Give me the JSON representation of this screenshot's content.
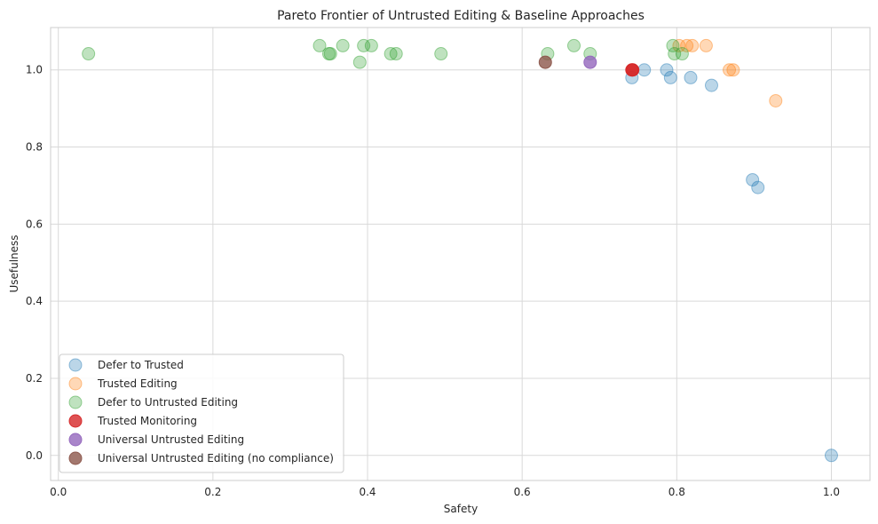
{
  "chart_data": {
    "type": "scatter",
    "title": "Pareto Frontier of Untrusted Editing & Baseline Approaches",
    "xlabel": "Safety",
    "ylabel": "Usefulness",
    "xlim": [
      -0.01,
      1.05
    ],
    "ylim": [
      -0.065,
      1.11
    ],
    "xticks": [
      0.0,
      0.2,
      0.4,
      0.6,
      0.8,
      1.0
    ],
    "xtick_labels": [
      "0.0",
      "0.2",
      "0.4",
      "0.6",
      "0.8",
      "1.0"
    ],
    "yticks": [
      0.0,
      0.2,
      0.4,
      0.6,
      0.8,
      1.0
    ],
    "ytick_labels": [
      "0.0",
      "0.2",
      "0.4",
      "0.6",
      "0.8",
      "1.0"
    ],
    "grid": true,
    "legend_position": "lower-left",
    "series": [
      {
        "name": "Defer to Trusted",
        "color": "#1f77b4",
        "opacity": 0.3,
        "points": [
          [
            0.742,
            0.98
          ],
          [
            0.758,
            1.0
          ],
          [
            0.787,
            1.0
          ],
          [
            0.792,
            0.98
          ],
          [
            0.818,
            0.98
          ],
          [
            0.845,
            0.96
          ],
          [
            0.898,
            0.715
          ],
          [
            0.905,
            0.695
          ],
          [
            1.0,
            0.0
          ]
        ]
      },
      {
        "name": "Trusted Editing",
        "color": "#ff7f0e",
        "opacity": 0.3,
        "points": [
          [
            0.803,
            1.063
          ],
          [
            0.813,
            1.063
          ],
          [
            0.82,
            1.063
          ],
          [
            0.838,
            1.063
          ],
          [
            0.868,
            1.0
          ],
          [
            0.873,
            1.0
          ],
          [
            0.928,
            0.92
          ]
        ]
      },
      {
        "name": "Defer to Untrusted Editing",
        "color": "#2ca02c",
        "opacity": 0.3,
        "points": [
          [
            0.039,
            1.042
          ],
          [
            0.338,
            1.063
          ],
          [
            0.35,
            1.042
          ],
          [
            0.352,
            1.042
          ],
          [
            0.368,
            1.063
          ],
          [
            0.39,
            1.02
          ],
          [
            0.395,
            1.063
          ],
          [
            0.405,
            1.063
          ],
          [
            0.43,
            1.042
          ],
          [
            0.437,
            1.042
          ],
          [
            0.495,
            1.042
          ],
          [
            0.633,
            1.042
          ],
          [
            0.667,
            1.063
          ],
          [
            0.688,
            1.042
          ],
          [
            0.795,
            1.063
          ],
          [
            0.797,
            1.042
          ],
          [
            0.807,
            1.042
          ]
        ]
      },
      {
        "name": "Trusted Monitoring",
        "color": "#d62728",
        "opacity": 0.8,
        "points": [
          [
            0.742,
            1.0
          ],
          [
            0.743,
            1.0
          ]
        ]
      },
      {
        "name": "Universal Untrusted Editing",
        "color": "#9467bd",
        "opacity": 0.8,
        "points": [
          [
            0.688,
            1.02
          ]
        ]
      },
      {
        "name": "Universal Untrusted Editing (no compliance)",
        "color": "#8c564b",
        "opacity": 0.8,
        "points": [
          [
            0.63,
            1.02
          ]
        ]
      }
    ]
  }
}
